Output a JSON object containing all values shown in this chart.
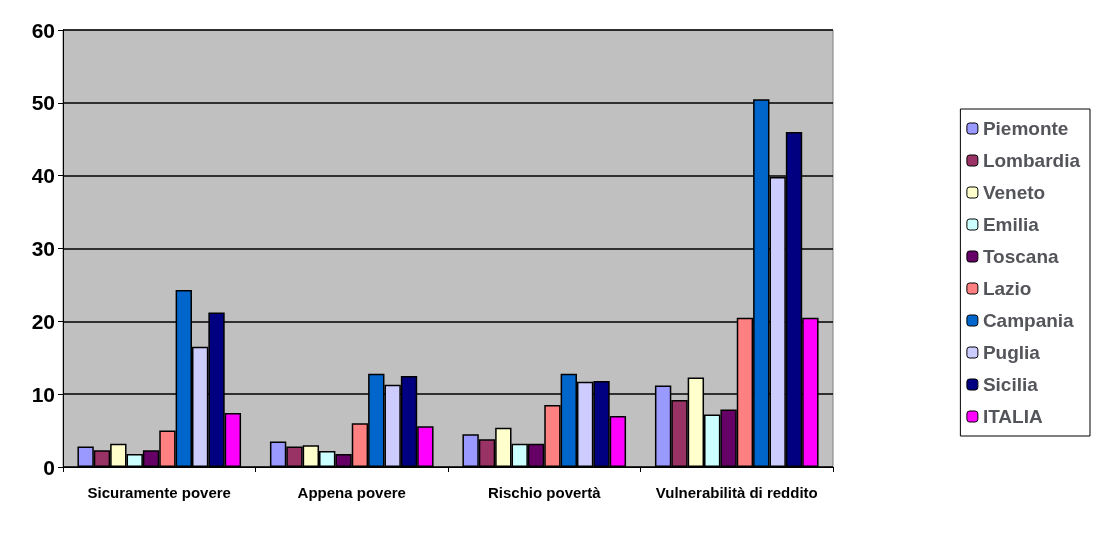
{
  "chart_data": {
    "type": "bar",
    "categories": [
      "Sicuramente povere",
      "Appena povere",
      "Rischio povertà",
      "Vulnerabilità di reddito"
    ],
    "series": [
      {
        "name": "Piemonte",
        "color": "#9999ff",
        "values": [
          2.8,
          3.5,
          4.5,
          11.2
        ]
      },
      {
        "name": "Lombardia",
        "color": "#993366",
        "values": [
          2.3,
          2.8,
          3.8,
          9.2
        ]
      },
      {
        "name": "Veneto",
        "color": "#ffffcc",
        "values": [
          3.2,
          3,
          5.4,
          12.3
        ]
      },
      {
        "name": "Emilia",
        "color": "#ccffff",
        "values": [
          1.8,
          2.2,
          3.2,
          7.2
        ]
      },
      {
        "name": "Toscana",
        "color": "#660066",
        "values": [
          2.3,
          1.8,
          3.2,
          7.9
        ]
      },
      {
        "name": "Lazio",
        "color": "#ff8080",
        "values": [
          5,
          6,
          8.5,
          20.5
        ]
      },
      {
        "name": "Campania",
        "color": "#0066cc",
        "values": [
          24.3,
          12.8,
          12.8,
          50.5
        ]
      },
      {
        "name": "Puglia",
        "color": "#ccccff",
        "values": [
          16.5,
          11.3,
          11.7,
          39.8
        ]
      },
      {
        "name": "Sicilia",
        "color": "#000080",
        "values": [
          21.2,
          12.5,
          11.8,
          46
        ]
      },
      {
        "name": "ITALIA",
        "color": "#ff00ff",
        "values": [
          7.4,
          5.6,
          7,
          20.5
        ]
      }
    ],
    "ylim": [
      0,
      60
    ],
    "yticks": [
      0,
      10,
      20,
      30,
      40,
      50,
      60
    ],
    "grid": "y",
    "legend": "right"
  }
}
